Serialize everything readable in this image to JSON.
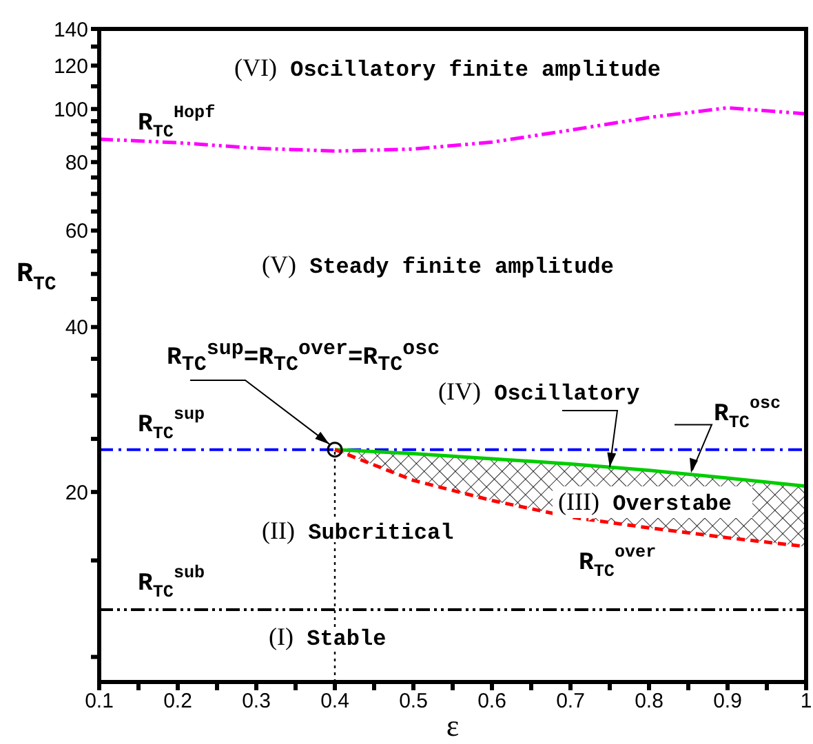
{
  "chart_data": {
    "type": "line",
    "xlabel": "ε",
    "ylabel": "R$_{TC}$",
    "log": "y",
    "xlim": [
      0.1,
      1
    ],
    "xticks": [
      0.1,
      {
        "value": 0.15,
        "label": null
      },
      0.2,
      {
        "value": 0.25,
        "label": null
      },
      0.3,
      {
        "value": 0.35,
        "label": null
      },
      0.4,
      {
        "value": 0.45,
        "label": null
      },
      0.5,
      {
        "value": 0.55,
        "label": null
      },
      0.6,
      {
        "value": 0.65,
        "label": null
      },
      0.7,
      {
        "value": 0.75,
        "label": null
      },
      0.8,
      {
        "value": 0.85,
        "label": null
      },
      0.9,
      {
        "value": 0.95,
        "label": null
      },
      1
    ],
    "ylim": [
      9,
      140
    ],
    "yticks": [
      {
        "value": 10,
        "label": null
      },
      {
        "value": 15,
        "label": null
      },
      20,
      {
        "value": 25,
        "label": null
      },
      {
        "value": 30,
        "label": null
      },
      {
        "value": 35,
        "label": null
      },
      40,
      {
        "value": 45,
        "label": null
      },
      {
        "value": 50,
        "label": null
      },
      {
        "value": 55,
        "label": null
      },
      60,
      {
        "value": 65,
        "label": null
      },
      {
        "value": 70,
        "label": null
      },
      {
        "value": 75,
        "label": null
      },
      80,
      {
        "value": 85,
        "label": null
      },
      {
        "value": 90,
        "label": null
      },
      {
        "value": 95,
        "label": null
      },
      100,
      {
        "value": 110,
        "label": null
      },
      120,
      {
        "value": 130,
        "label": null
      },
      140
    ],
    "series": [
      {
        "name": "R$_{TC}$$^{Hopf}$",
        "color": "#ff00ff",
        "line_style": "dashdotdot",
        "x": [
          0.1,
          0.2,
          0.3,
          0.4,
          0.5,
          0.6,
          0.7,
          0.8,
          0.9,
          1.0
        ],
        "values": [
          88.1,
          86.8,
          84.8,
          83.8,
          84.5,
          87,
          91.5,
          96.5,
          100.5,
          98
        ]
      },
      {
        "name": "R$_{TC}$$^{osc}$",
        "color": "#00cc00",
        "line_style": "solid",
        "x": [
          0.4,
          0.5,
          0.6,
          0.7,
          0.8,
          0.9,
          1.0
        ],
        "values": [
          23.9,
          23.5,
          23.0,
          22.5,
          21.9,
          21.2,
          20.5
        ],
        "lower": [
          23.9,
          21.0,
          19.3,
          18.0,
          17.2,
          16.5,
          15.9
        ],
        "upper": [
          23.9,
          23.5,
          23.0,
          22.5,
          21.9,
          21.2,
          20.5
        ]
      },
      {
        "name": "R$_{TC}$$^{over}$",
        "color": "#ff0000",
        "line_style": "dashed",
        "x": [
          0.4,
          0.5,
          0.6,
          0.7,
          0.8,
          0.9,
          1.0
        ],
        "values": [
          23.9,
          21.0,
          19.3,
          18.0,
          17.2,
          16.5,
          15.9
        ]
      },
      {
        "color": "#000000",
        "line_style": "dotted",
        "x": [
          0.4,
          0.4
        ],
        "values": [
          9,
          23.9
        ]
      },
      {
        "type": "scatter",
        "color": "#000000",
        "marker": "circle",
        "x": [
          0.4
        ],
        "values": [
          23.9
        ]
      }
    ],
    "ref_lines": [
      {
        "axis": "y",
        "value": 23.9,
        "label": "R$_{TC}$$^{sup}$",
        "color": "#0000ff",
        "line_style": "dashdot"
      },
      {
        "axis": "y",
        "value": 12.2,
        "label": "R$_{TC}$$^{sub}$",
        "color": "#000000",
        "line_style": "dashdotdot"
      }
    ],
    "annotations": [
      "(VI) Oscillatory finite amplitude",
      "(V) Steady finite amplitude",
      {
        "text": "(IV) Oscillatory",
        "x": 0.75,
        "y": 22.2
      },
      "(III) Overstabe",
      "(II) Subcritical",
      "(I) Stable",
      "R$_{TC}$$^{sup}$=R$_{TC}$$^{over}$=R$_{TC}$$^{osc}$"
    ]
  }
}
